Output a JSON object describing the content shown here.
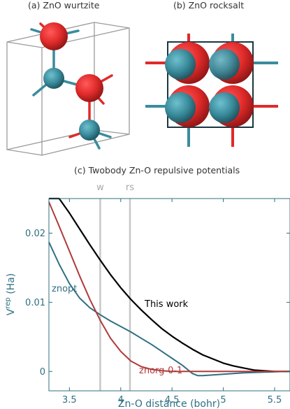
{
  "panels": {
    "a_title": "(a) ZnO wurtzite",
    "b_title": "(b) ZnO rocksalt",
    "c_title": "(c) Twobody Zn-O repulsive potentials"
  },
  "colors": {
    "zn_atom": "#3a8c9c",
    "o_atom": "#e02a2a",
    "this_work": "#000000",
    "znopt": "#2f6f82",
    "znorg": "#b03a3a",
    "marker": "#c8c8c8",
    "axis_text": "#2f6f82"
  },
  "chart_data": {
    "type": "line",
    "title": "(c) Twobody Zn-O repulsive potentials",
    "xlabel": "Zn-O distance (bohr)",
    "ylabel_main": "V",
    "ylabel_sup": "rep",
    "ylabel_unit": " (Ha)",
    "xlim": [
      3.3,
      5.65
    ],
    "ylim": [
      -0.0028,
      0.025
    ],
    "xticks": [
      3.5,
      4,
      4.5,
      5,
      5.5
    ],
    "xtick_labels": [
      "3.5",
      "4",
      "4.5",
      "5",
      "5.5"
    ],
    "yticks": [
      0,
      0.01,
      0.02
    ],
    "ytick_labels": [
      "0",
      "0.01",
      "0.02"
    ],
    "grid": false,
    "markers": [
      {
        "label": "w",
        "x": 3.8
      },
      {
        "label": "rs",
        "x": 4.09
      }
    ],
    "series": [
      {
        "name": "This work",
        "x": [
          3.3,
          3.4,
          3.5,
          3.6,
          3.7,
          3.8,
          3.9,
          4.0,
          4.1,
          4.2,
          4.3,
          4.4,
          4.5,
          4.6,
          4.7,
          4.8,
          4.9,
          5.0,
          5.1,
          5.2,
          5.3,
          5.4,
          5.5,
          5.65
        ],
        "y": [
          0.0275,
          0.0252,
          0.0229,
          0.0206,
          0.0183,
          0.0161,
          0.014,
          0.0121,
          0.0104,
          0.0089,
          0.0075,
          0.0062,
          0.0051,
          0.0041,
          0.0032,
          0.0024,
          0.0018,
          0.0012,
          0.0008,
          0.0005,
          0.0002,
          0.0001,
          0.0,
          0.0
        ]
      },
      {
        "name": "znopt",
        "x": [
          3.3,
          3.4,
          3.5,
          3.6,
          3.7,
          3.8,
          3.9,
          4.0,
          4.1,
          4.2,
          4.3,
          4.4,
          4.5,
          4.6,
          4.7,
          4.75,
          4.8,
          4.9,
          5.0,
          5.2,
          5.4,
          5.6,
          5.65
        ],
        "y": [
          0.0187,
          0.0155,
          0.0127,
          0.0106,
          0.0092,
          0.0082,
          0.0073,
          0.0065,
          0.0057,
          0.0048,
          0.0039,
          0.0029,
          0.0019,
          0.0009,
          -0.0003,
          -0.0006,
          -0.0006,
          -0.0005,
          -0.0004,
          -0.0002,
          -0.0001,
          0.0,
          0.0
        ]
      },
      {
        "name": "znorg-0-1",
        "x": [
          3.3,
          3.4,
          3.5,
          3.6,
          3.7,
          3.8,
          3.9,
          4.0,
          4.1,
          4.2,
          4.3,
          4.4,
          4.5,
          4.6,
          4.8,
          5.0,
          5.2,
          5.4,
          5.65
        ],
        "y": [
          0.0245,
          0.021,
          0.0174,
          0.0138,
          0.0104,
          0.0074,
          0.0048,
          0.0029,
          0.0015,
          0.0007,
          0.0003,
          0.0001,
          0.0,
          0.0,
          0.0,
          0.0,
          0.0,
          0.0,
          0.0
        ]
      }
    ]
  }
}
